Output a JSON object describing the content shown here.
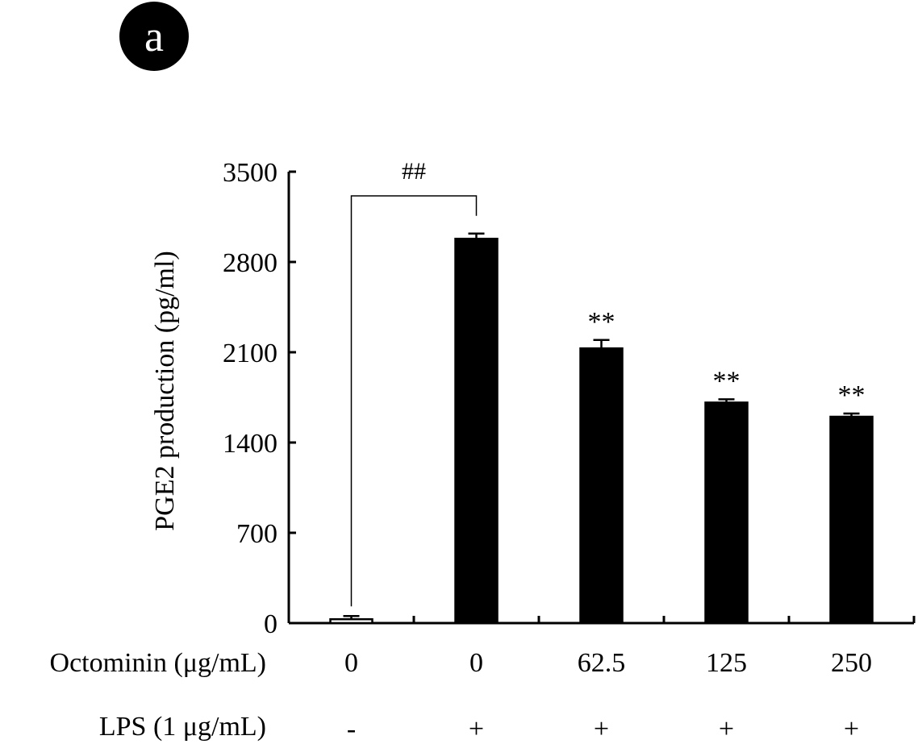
{
  "panel_label": "a",
  "chart_data": {
    "type": "bar",
    "title": "",
    "ylabel": "PGE2 production (pg/ml)",
    "ylim": [
      0,
      3500
    ],
    "yticks": [
      "0",
      "700",
      "1400",
      "2100",
      "2800",
      "3500"
    ],
    "categories": [
      "0",
      "0",
      "62.5",
      "125",
      "250"
    ],
    "values": [
      30,
      2980,
      2130,
      1710,
      1600
    ],
    "errors": [
      25,
      40,
      65,
      25,
      25
    ],
    "bar_colors": [
      "#ffffff",
      "#000000",
      "#000000",
      "#000000",
      "#000000"
    ],
    "significance": [
      "",
      "",
      "**",
      "**",
      "**"
    ],
    "comparison_bracket": {
      "from": 0,
      "to": 1,
      "label": "##"
    },
    "row_labels": [
      "Octominin (μg/mL)",
      "LPS (1 μg/mL)"
    ],
    "lps_row": [
      "-",
      "+",
      "+",
      "+",
      "+"
    ]
  }
}
